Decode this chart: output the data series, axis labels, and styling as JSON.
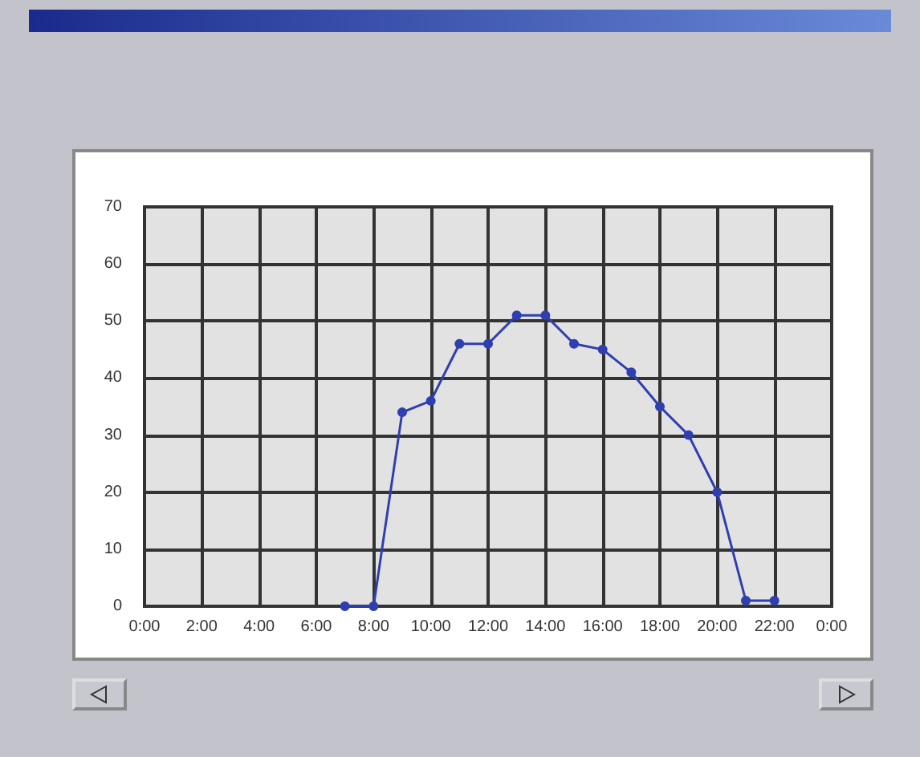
{
  "chart_data": {
    "type": "line",
    "x": [
      7,
      8,
      9,
      10,
      11,
      12,
      13,
      14,
      15,
      16,
      17,
      18,
      19,
      20,
      21,
      22
    ],
    "series": [
      {
        "color": "#2f3fb0",
        "values": [
          0,
          0,
          34,
          36,
          46,
          46,
          51,
          51,
          46,
          45,
          41,
          35,
          30,
          20,
          1,
          1
        ]
      }
    ],
    "xlim": [
      0,
      24
    ],
    "xticks": [
      {
        "value": 0,
        "label": "0:00"
      },
      {
        "value": 2,
        "label": "2:00"
      },
      {
        "value": 4,
        "label": "4:00"
      },
      {
        "value": 6,
        "label": "6:00"
      },
      {
        "value": 8,
        "label": "8:00"
      },
      {
        "value": 10,
        "label": "10:00"
      },
      {
        "value": 12,
        "label": "12:00"
      },
      {
        "value": 14,
        "label": "14:00"
      },
      {
        "value": 16,
        "label": "16:00"
      },
      {
        "value": 18,
        "label": "18:00"
      },
      {
        "value": 20,
        "label": "20:00"
      },
      {
        "value": 22,
        "label": "22:00"
      },
      {
        "value": 24,
        "label": "0:00"
      }
    ],
    "ylim": [
      0,
      70
    ],
    "yticks": [
      0,
      10,
      20,
      30,
      40,
      50,
      60,
      70
    ],
    "grid": true,
    "marker": "circle",
    "line_style": "solid"
  }
}
